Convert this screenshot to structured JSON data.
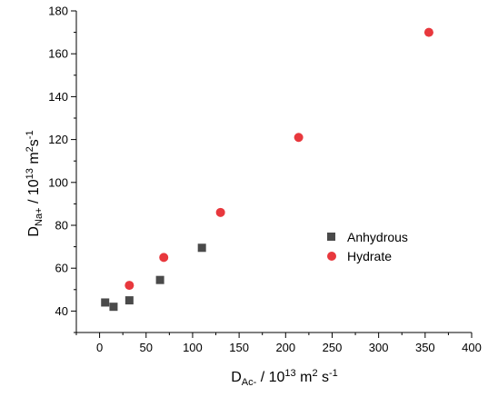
{
  "chart_data": {
    "type": "scatter",
    "x_axis": {
      "label_main": "D",
      "label_sub": "Ac-",
      "label_rest": " / 10",
      "label_sup": "13",
      "label_units": " m",
      "label_units_sup": "2",
      "label_units_s": " s",
      "label_units_s_sup": "-1",
      "range": [
        -25,
        400
      ],
      "ticks": [
        0,
        50,
        100,
        150,
        200,
        250,
        300,
        350,
        400
      ],
      "tick_labels": [
        "0",
        "50",
        "100",
        "150",
        "200",
        "250",
        "300",
        "350",
        "400"
      ]
    },
    "y_axis": {
      "label_main": "D",
      "label_sub": "Na+",
      "label_rest": " / 10",
      "label_sup": "13",
      "label_units": " m",
      "label_units_sup": "2",
      "label_units_s": "s",
      "label_units_s_sup": "-1",
      "range": [
        30,
        180
      ],
      "ticks": [
        40,
        60,
        80,
        100,
        120,
        140,
        160,
        180
      ],
      "tick_labels": [
        "40",
        "60",
        "80",
        "100",
        "120",
        "140",
        "160",
        "180"
      ]
    },
    "series": [
      {
        "name": "Anhydrous",
        "marker": "square",
        "color": "#4a4a4a",
        "x": [
          6,
          15,
          32,
          65,
          110
        ],
        "y": [
          44,
          42,
          45,
          54.5,
          69.5
        ]
      },
      {
        "name": "Hydrate",
        "marker": "circle",
        "color": "#e8383d",
        "x": [
          32,
          69,
          130,
          214,
          354
        ],
        "y": [
          52,
          65,
          86,
          121,
          170
        ]
      }
    ],
    "legend": {
      "placement": "center-right",
      "entries": [
        "Anhydrous",
        "Hydrate"
      ]
    },
    "grid": false
  }
}
